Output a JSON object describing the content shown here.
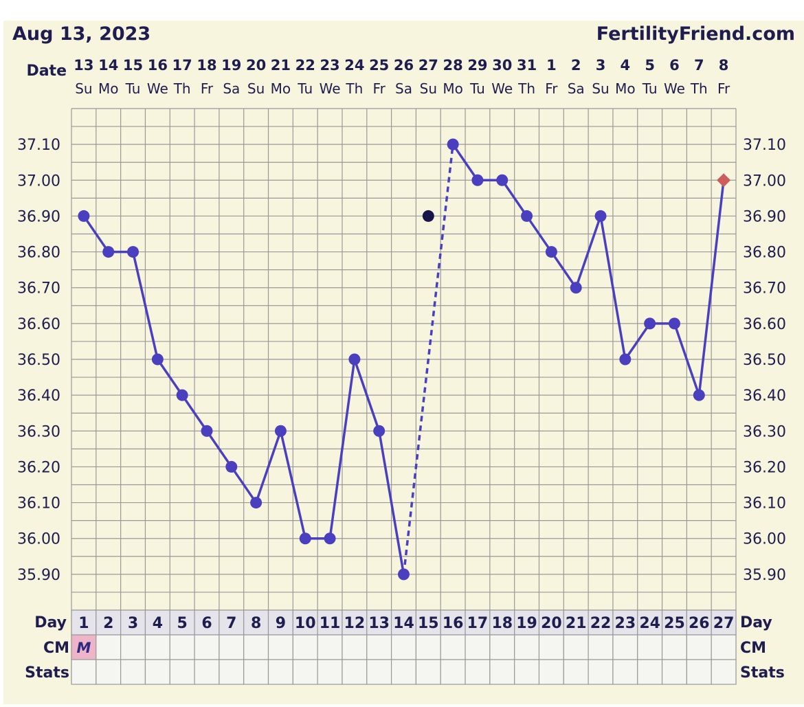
{
  "header": {
    "date_title": "Aug 13, 2023",
    "brand": "FertilityFriend.com"
  },
  "labels": {
    "date": "Date",
    "day": "Day",
    "cm": "CM",
    "stats": "Stats"
  },
  "colors": {
    "background": "#f8f5df",
    "grid": "#999999",
    "line": "#4a3fbf",
    "excluded_point": "#17154a",
    "latest_point": "#cd5c5c",
    "cm_menstruation": "#eeb4c8"
  },
  "chart_data": {
    "type": "line",
    "title": "",
    "y_tick_labels": [
      "37.10",
      "37.00",
      "36.90",
      "36.80",
      "36.70",
      "36.60",
      "36.50",
      "36.40",
      "36.30",
      "36.20",
      "36.10",
      "36.00",
      "35.90"
    ],
    "ylim": [
      35.8,
      37.2
    ],
    "y_tick_step": 0.1,
    "grid": true,
    "dates": [
      "13",
      "14",
      "15",
      "16",
      "17",
      "18",
      "19",
      "20",
      "21",
      "22",
      "23",
      "24",
      "25",
      "26",
      "27",
      "28",
      "29",
      "30",
      "31",
      "1",
      "2",
      "3",
      "4",
      "5",
      "6",
      "7",
      "8"
    ],
    "weekdays": [
      "Su",
      "Mo",
      "Tu",
      "We",
      "Th",
      "Fr",
      "Sa",
      "Su",
      "Mo",
      "Tu",
      "We",
      "Th",
      "Fr",
      "Sa",
      "Su",
      "Mo",
      "Tu",
      "We",
      "Th",
      "Fr",
      "Sa",
      "Su",
      "Mo",
      "Tu",
      "We",
      "Th",
      "Fr"
    ],
    "days": [
      "1",
      "2",
      "3",
      "4",
      "5",
      "6",
      "7",
      "8",
      "9",
      "10",
      "11",
      "12",
      "13",
      "14",
      "15",
      "16",
      "17",
      "18",
      "19",
      "20",
      "21",
      "22",
      "23",
      "24",
      "25",
      "26",
      "27"
    ],
    "temperatures": [
      36.9,
      36.8,
      36.8,
      36.5,
      36.4,
      36.3,
      36.2,
      36.1,
      36.3,
      36.0,
      36.0,
      36.5,
      36.3,
      35.9,
      36.9,
      37.1,
      37.0,
      37.0,
      36.9,
      36.8,
      36.7,
      36.9,
      36.5,
      36.6,
      36.6,
      36.4,
      37.0
    ],
    "excluded_days": [
      15
    ],
    "latest_day": 27,
    "cm": [
      "M",
      "",
      "",
      "",
      "",
      "",
      "",
      "",
      "",
      "",
      "",
      "",
      "",
      "",
      "",
      "",
      "",
      "",
      "",
      "",
      "",
      "",
      "",
      "",
      "",
      "",
      ""
    ],
    "stats": [
      "",
      "",
      "",
      "",
      "",
      "",
      "",
      "",
      "",
      "",
      "",
      "",
      "",
      "",
      "",
      "",
      "",
      "",
      "",
      "",
      "",
      "",
      "",
      "",
      "",
      "",
      ""
    ]
  }
}
